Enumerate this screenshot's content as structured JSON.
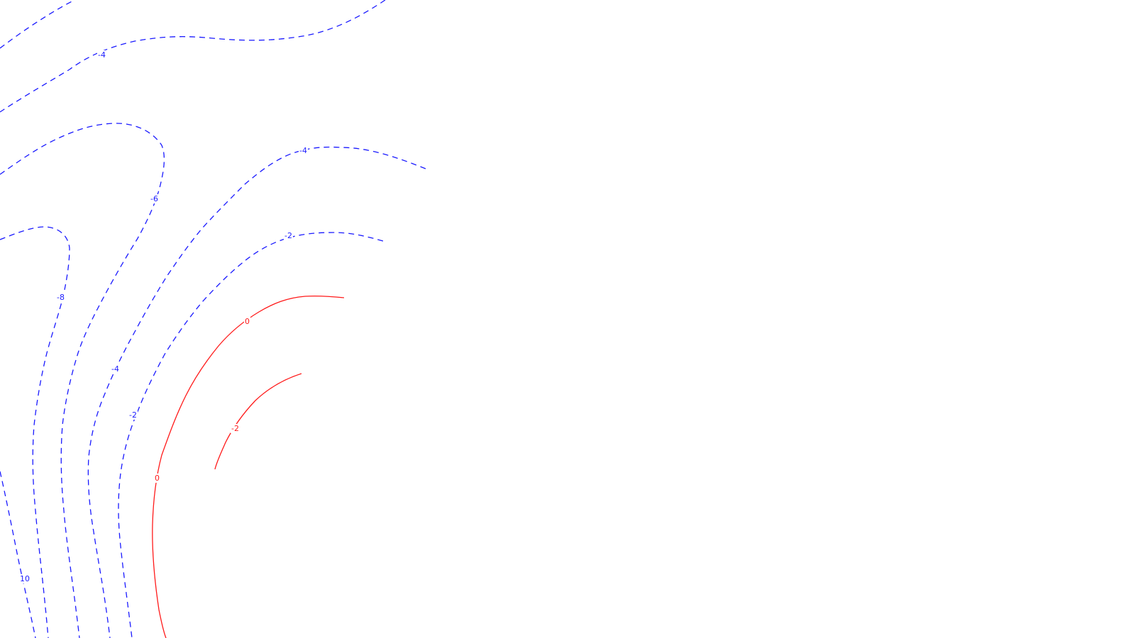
{
  "colors": {
    "background": "#ffffff",
    "positive": "#1a1aff",
    "negative": "#ff1a1a"
  },
  "line_styles": {
    "positive": "dashed",
    "negative": "solid"
  },
  "contour_labels": {
    "l1": "-4",
    "l2": "-4",
    "l3": "-6",
    "l4": "-8",
    "l5": "-4",
    "l6": "-2",
    "l7": "-2",
    "l8": "0",
    "l9": "0",
    "l10": "-2",
    "l11": "10"
  }
}
